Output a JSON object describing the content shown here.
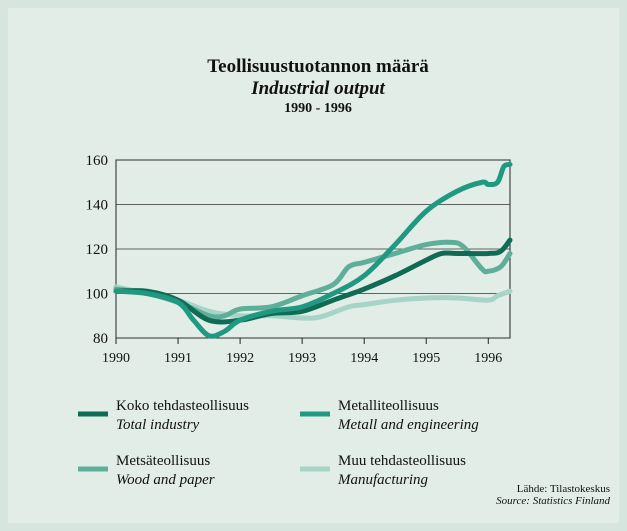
{
  "chart_data": {
    "type": "line",
    "title": "Teollisuustuotannon määrä",
    "subtitle": "Industrial output",
    "period": "1990 - 1996",
    "xlim": [
      1990,
      1996.35
    ],
    "xticks": [
      1990,
      1991,
      1992,
      1993,
      1994,
      1995,
      1996
    ],
    "ylim": [
      80,
      160
    ],
    "yticks": [
      80,
      100,
      120,
      140,
      160
    ],
    "grid": true,
    "series": [
      {
        "name": "Koko tehdasteollisuus",
        "name_en": "Total industry",
        "color": "#0f6b53",
        "x": [
          1990,
          1990.5,
          1991,
          1991.5,
          1992,
          1992.5,
          1993,
          1993.5,
          1994,
          1994.5,
          1995,
          1995.25,
          1995.5,
          1996,
          1996.2,
          1996.35
        ],
        "values": [
          101,
          101,
          97,
          88,
          88,
          91,
          92,
          97,
          102,
          108,
          115,
          118,
          118,
          118,
          119,
          124
        ]
      },
      {
        "name": "Metalliteollisuus",
        "name_en": "Metall and engineering",
        "color": "#1f9a80",
        "x": [
          1990,
          1990.5,
          1991,
          1991.25,
          1991.5,
          1991.75,
          1992,
          1992.5,
          1993,
          1993.5,
          1994,
          1994.5,
          1995,
          1995.5,
          1995.9,
          1996,
          1996.15,
          1996.25,
          1996.35
        ],
        "values": [
          101,
          100,
          96,
          88,
          81,
          83,
          88,
          92,
          94,
          100,
          108,
          122,
          137,
          146,
          150,
          149,
          150,
          157,
          158
        ]
      },
      {
        "name": "Metsäteollisuus",
        "name_en": "Wood and paper",
        "color": "#5fae99",
        "x": [
          1990,
          1990.5,
          1991,
          1991.5,
          1991.75,
          1992,
          1992.5,
          1993,
          1993.5,
          1993.75,
          1994,
          1994.5,
          1995,
          1995.4,
          1995.6,
          1995.9,
          1996,
          1996.2,
          1996.35
        ],
        "values": [
          102,
          100,
          96,
          90,
          90,
          93,
          94,
          99,
          104,
          112,
          114,
          118,
          122,
          123,
          121,
          111,
          110,
          112,
          118
        ]
      },
      {
        "name": "Muu tehdasteollisuus",
        "name_en": "Manufacturing",
        "color": "#a6d4c6",
        "x": [
          1990,
          1990.5,
          1991,
          1991.5,
          1992,
          1992.5,
          1993,
          1993.3,
          1993.75,
          1994,
          1994.5,
          1995,
          1995.5,
          1996,
          1996.15,
          1996.35
        ],
        "values": [
          103,
          100,
          97,
          92,
          90,
          90,
          89,
          89.5,
          94,
          95,
          97,
          98,
          98,
          97,
          99,
          101
        ]
      }
    ],
    "source": "Lähde: Tilastokeskus",
    "source_en": "Source: Statistics Finland"
  }
}
